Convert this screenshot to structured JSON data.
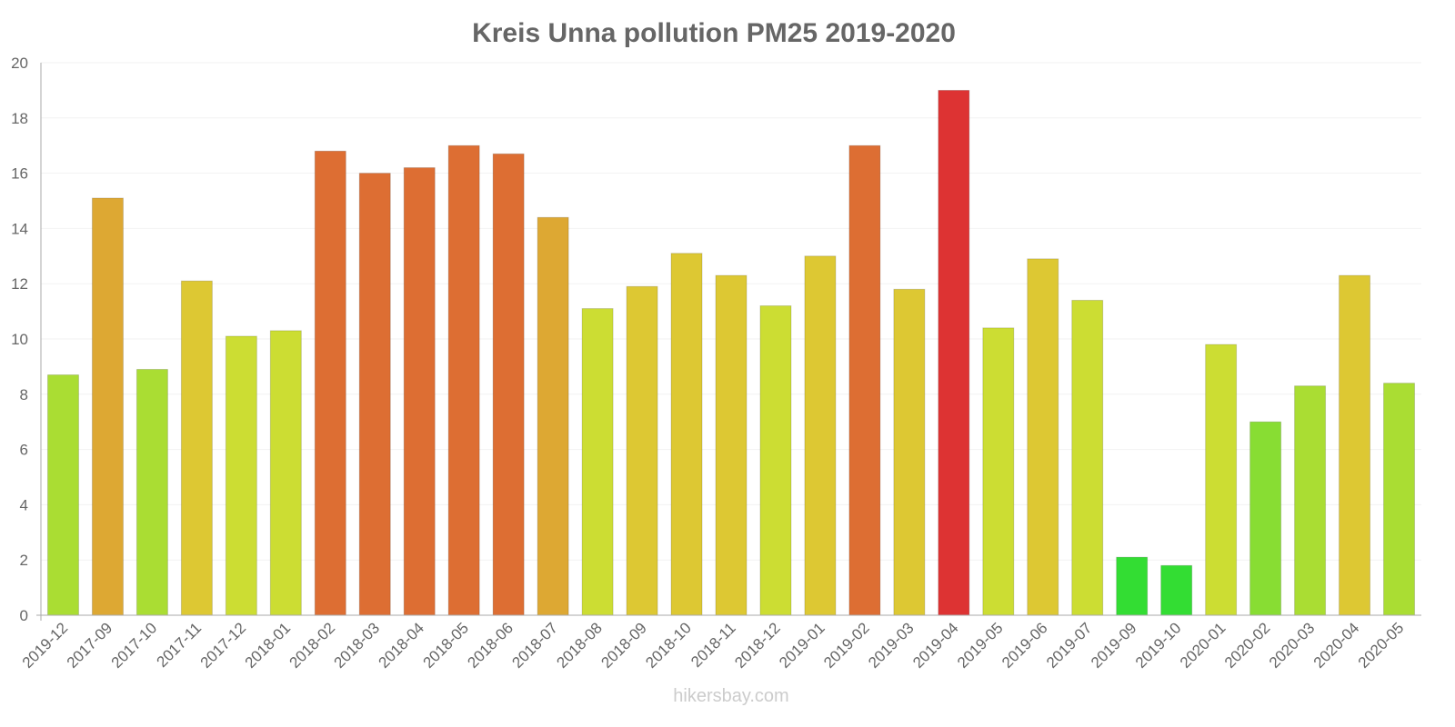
{
  "chart_data": {
    "type": "bar",
    "title": "Kreis Unna pollution PM25 2019-2020",
    "xlabel": "",
    "ylabel": "",
    "ylim": [
      0,
      20
    ],
    "yticks": [
      0,
      2,
      4,
      6,
      8,
      10,
      12,
      14,
      16,
      18,
      20
    ],
    "grid": true,
    "categories": [
      "2019-12",
      "2017-09",
      "2017-10",
      "2017-11",
      "2017-12",
      "2018-01",
      "2018-02",
      "2018-03",
      "2018-04",
      "2018-05",
      "2018-06",
      "2018-07",
      "2018-08",
      "2018-09",
      "2018-10",
      "2018-11",
      "2018-12",
      "2019-01",
      "2019-02",
      "2019-03",
      "2019-04",
      "2019-05",
      "2019-06",
      "2019-07",
      "2019-09",
      "2019-10",
      "2020-01",
      "2020-02",
      "2020-03",
      "2020-04",
      "2020-05"
    ],
    "values": [
      8.7,
      15.1,
      8.9,
      12.1,
      10.1,
      10.3,
      16.8,
      16,
      16.2,
      17,
      16.7,
      14.4,
      11.1,
      11.9,
      13.1,
      12.3,
      11.2,
      13,
      17,
      11.8,
      19,
      10.4,
      12.9,
      11.4,
      2.1,
      1.8,
      9.8,
      7,
      8.3,
      12.3,
      8.4
    ],
    "color_scale": [
      {
        "max": 3,
        "color": "#33dd33"
      },
      {
        "max": 7.5,
        "color": "#88dd33"
      },
      {
        "max": 9.5,
        "color": "#aadd33"
      },
      {
        "max": 11.5,
        "color": "#ccdd33"
      },
      {
        "max": 13.5,
        "color": "#ddc833"
      },
      {
        "max": 15.5,
        "color": "#dda833"
      },
      {
        "max": 18,
        "color": "#dd6e33"
      },
      {
        "max": 100,
        "color": "#dd3333"
      }
    ]
  },
  "watermark": "hikersbay.com"
}
